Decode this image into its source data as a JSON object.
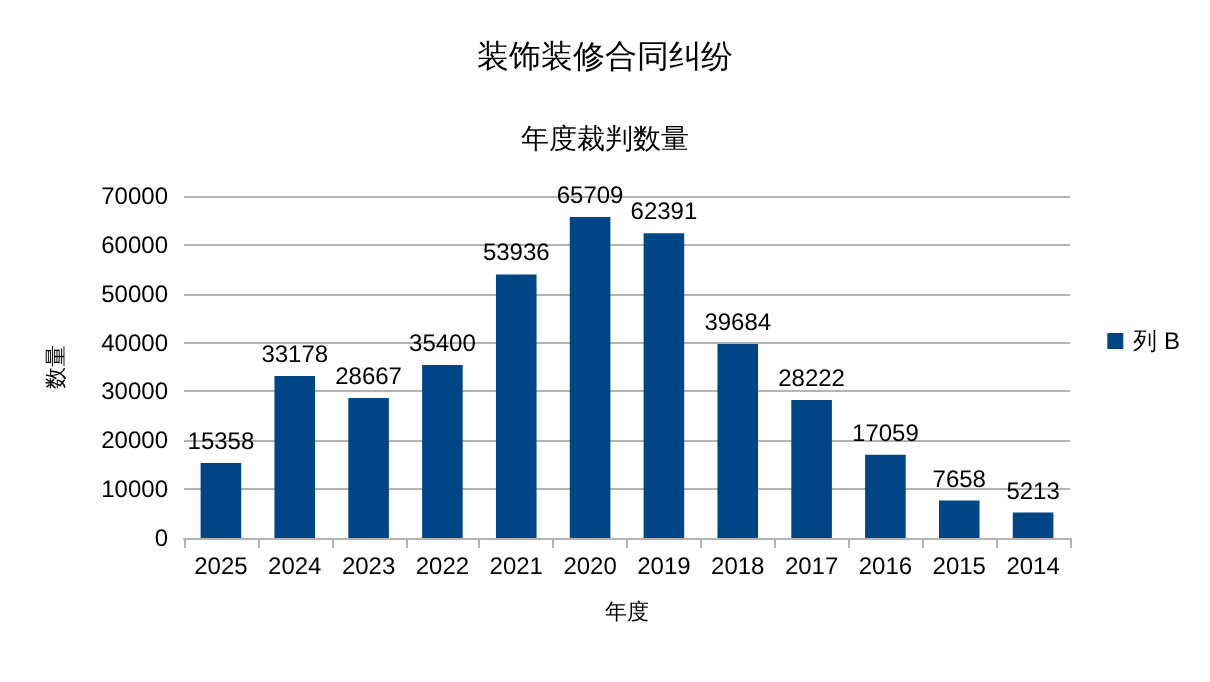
{
  "chart_data": {
    "type": "bar",
    "title": "装饰装修合同纠纷",
    "subtitle": "年度裁判数量",
    "xlabel": "年度",
    "ylabel": "数量",
    "categories": [
      "2025",
      "2024",
      "2023",
      "2022",
      "2021",
      "2020",
      "2019",
      "2018",
      "2017",
      "2016",
      "2015",
      "2014"
    ],
    "series": [
      {
        "name": "列 B",
        "color": "#004586",
        "values": [
          15358,
          33178,
          28667,
          35400,
          53936,
          65709,
          62391,
          39684,
          28222,
          17059,
          7658,
          5213
        ]
      }
    ],
    "ylim": [
      0,
      70000
    ],
    "yticks": [
      0,
      10000,
      20000,
      30000,
      40000,
      50000,
      60000,
      70000
    ],
    "grid": "y",
    "legend": "right",
    "data_labels": true
  }
}
